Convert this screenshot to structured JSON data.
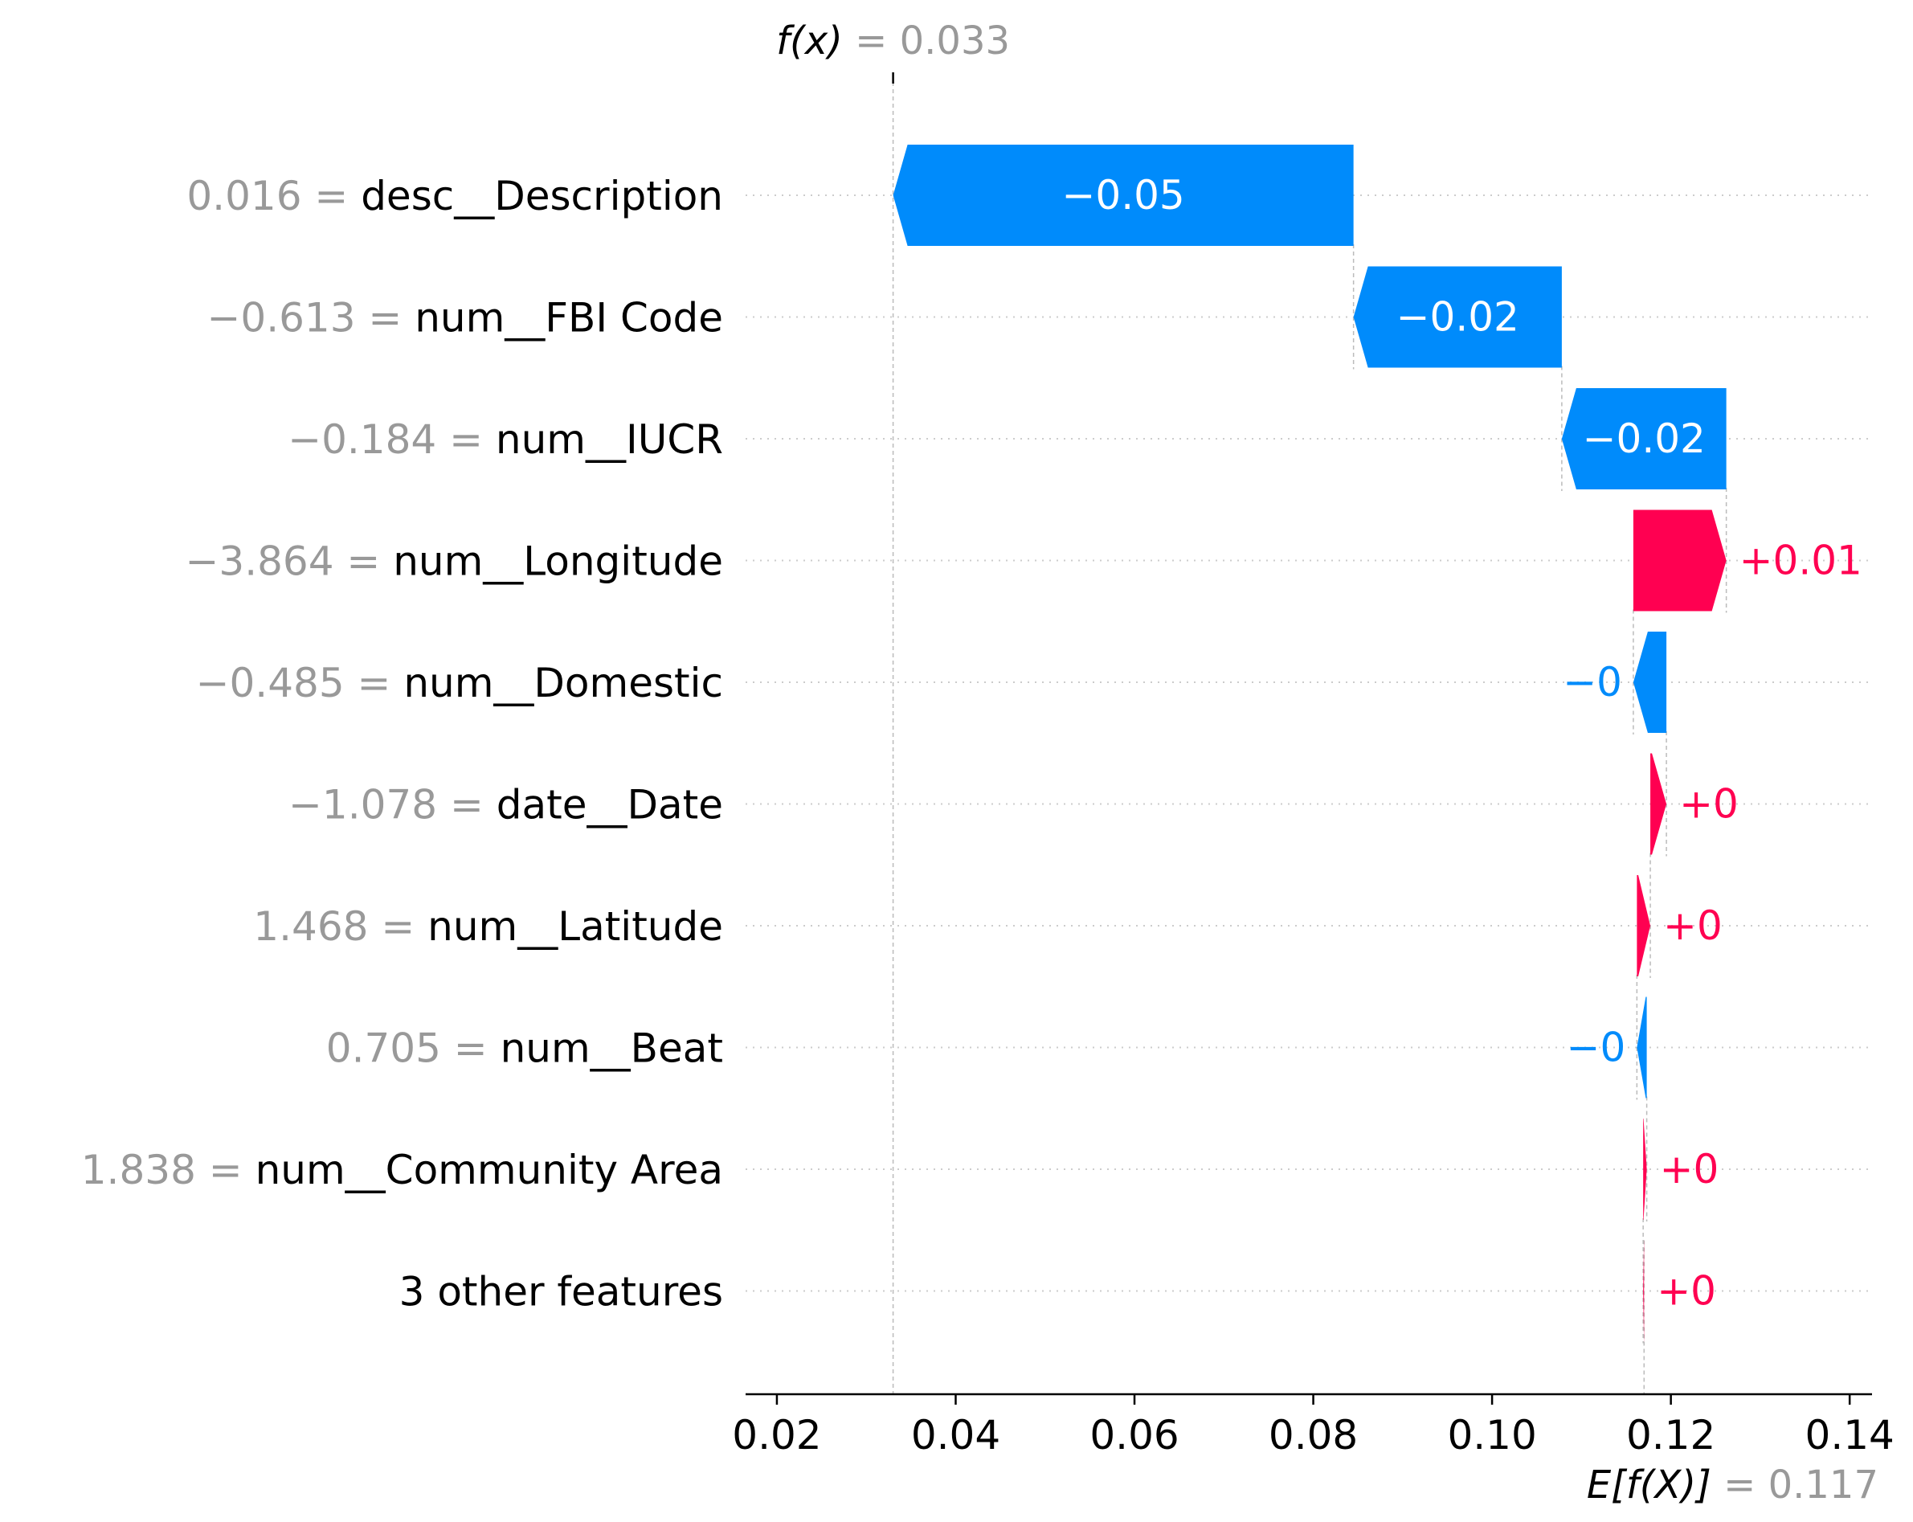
{
  "chart_data": {
    "type": "waterfall",
    "title": "",
    "xlabel": "",
    "ylabel": "",
    "xlim": [
      0.0165,
      0.1425
    ],
    "x_ticks": [
      0.02,
      0.04,
      0.06,
      0.08,
      0.1,
      0.12,
      0.14
    ],
    "x_tick_labels": [
      "0.02",
      "0.04",
      "0.06",
      "0.08",
      "0.10",
      "0.12",
      "0.14"
    ],
    "base_value": 0.117,
    "output_value": 0.033,
    "output_label_prefix": "f(x)",
    "output_label_value": " = 0.033",
    "base_label_prefix": "E[f(X)]",
    "base_label_value": " = 0.117",
    "features": [
      {
        "value": "0.016",
        "name": "desc__Description",
        "start": 0.0845,
        "end": 0.033,
        "label": "−0.05",
        "sign": "neg"
      },
      {
        "value": "−0.613",
        "name": "num__FBI Code",
        "start": 0.1078,
        "end": 0.0845,
        "label": "−0.02",
        "sign": "neg"
      },
      {
        "value": "−0.184",
        "name": "num__IUCR",
        "start": 0.1262,
        "end": 0.1078,
        "label": "−0.02",
        "sign": "neg"
      },
      {
        "value": "−3.864",
        "name": "num__Longitude",
        "start": 0.1158,
        "end": 0.1262,
        "label": "+0.01",
        "sign": "pos"
      },
      {
        "value": "−0.485",
        "name": "num__Domestic",
        "start": 0.1195,
        "end": 0.1158,
        "label": "−0",
        "sign": "neg"
      },
      {
        "value": "−1.078",
        "name": "date__Date",
        "start": 0.1177,
        "end": 0.1195,
        "label": "+0",
        "sign": "pos"
      },
      {
        "value": "1.468",
        "name": "num__Latitude",
        "start": 0.1162,
        "end": 0.1177,
        "label": "+0",
        "sign": "pos"
      },
      {
        "value": "0.705",
        "name": "num__Beat",
        "start": 0.1173,
        "end": 0.1162,
        "label": "−0",
        "sign": "neg"
      },
      {
        "value": "1.838",
        "name": "num__Community Area",
        "start": 0.1169,
        "end": 0.1173,
        "label": "+0",
        "sign": "pos"
      },
      {
        "value": "",
        "name": "3 other features",
        "start": 0.117,
        "end": 0.1169,
        "label": "+0",
        "sign": "pos"
      }
    ],
    "colors": {
      "negative": "#008bfb",
      "positive": "#ff0051",
      "label_gray": "#999999",
      "grid": "#cccccc",
      "text": "#000000"
    },
    "grid": true
  }
}
